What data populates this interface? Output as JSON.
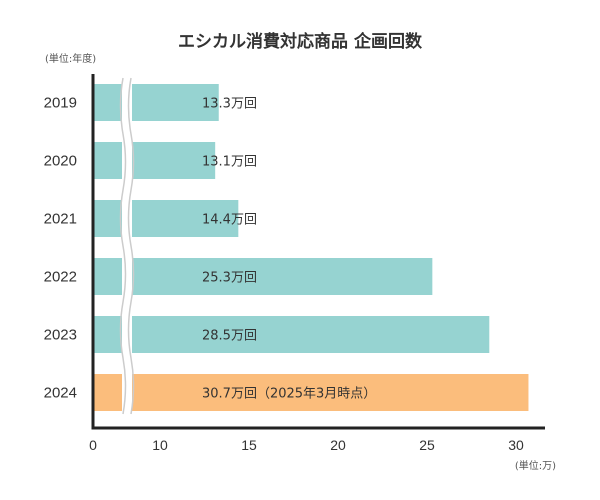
{
  "chart_data": {
    "type": "bar",
    "orientation": "horizontal",
    "title": "エシカル消費対応商品 企画回数",
    "y_unit_label": "(単位:年度)",
    "x_unit_label": "(単位:万)",
    "categories": [
      "2019",
      "2020",
      "2021",
      "2022",
      "2023",
      "2024"
    ],
    "values": [
      13.3,
      13.1,
      14.4,
      25.3,
      28.5,
      30.7
    ],
    "data_labels": [
      "13.3万回",
      "13.1万回",
      "14.4万回",
      "25.3万回",
      "28.5万回",
      "30.7万回（2025年3月時点）"
    ],
    "x_ticks": [
      "0",
      "10",
      "15",
      "20",
      "25",
      "30"
    ],
    "axis_break": "between 0 and 10",
    "xlim": [
      0,
      32
    ],
    "colors": {
      "default": "#96d3d1",
      "highlight": "#fbbd7c",
      "axis": "#222222",
      "break": "#cccccc"
    },
    "highlight_category": "2024"
  }
}
